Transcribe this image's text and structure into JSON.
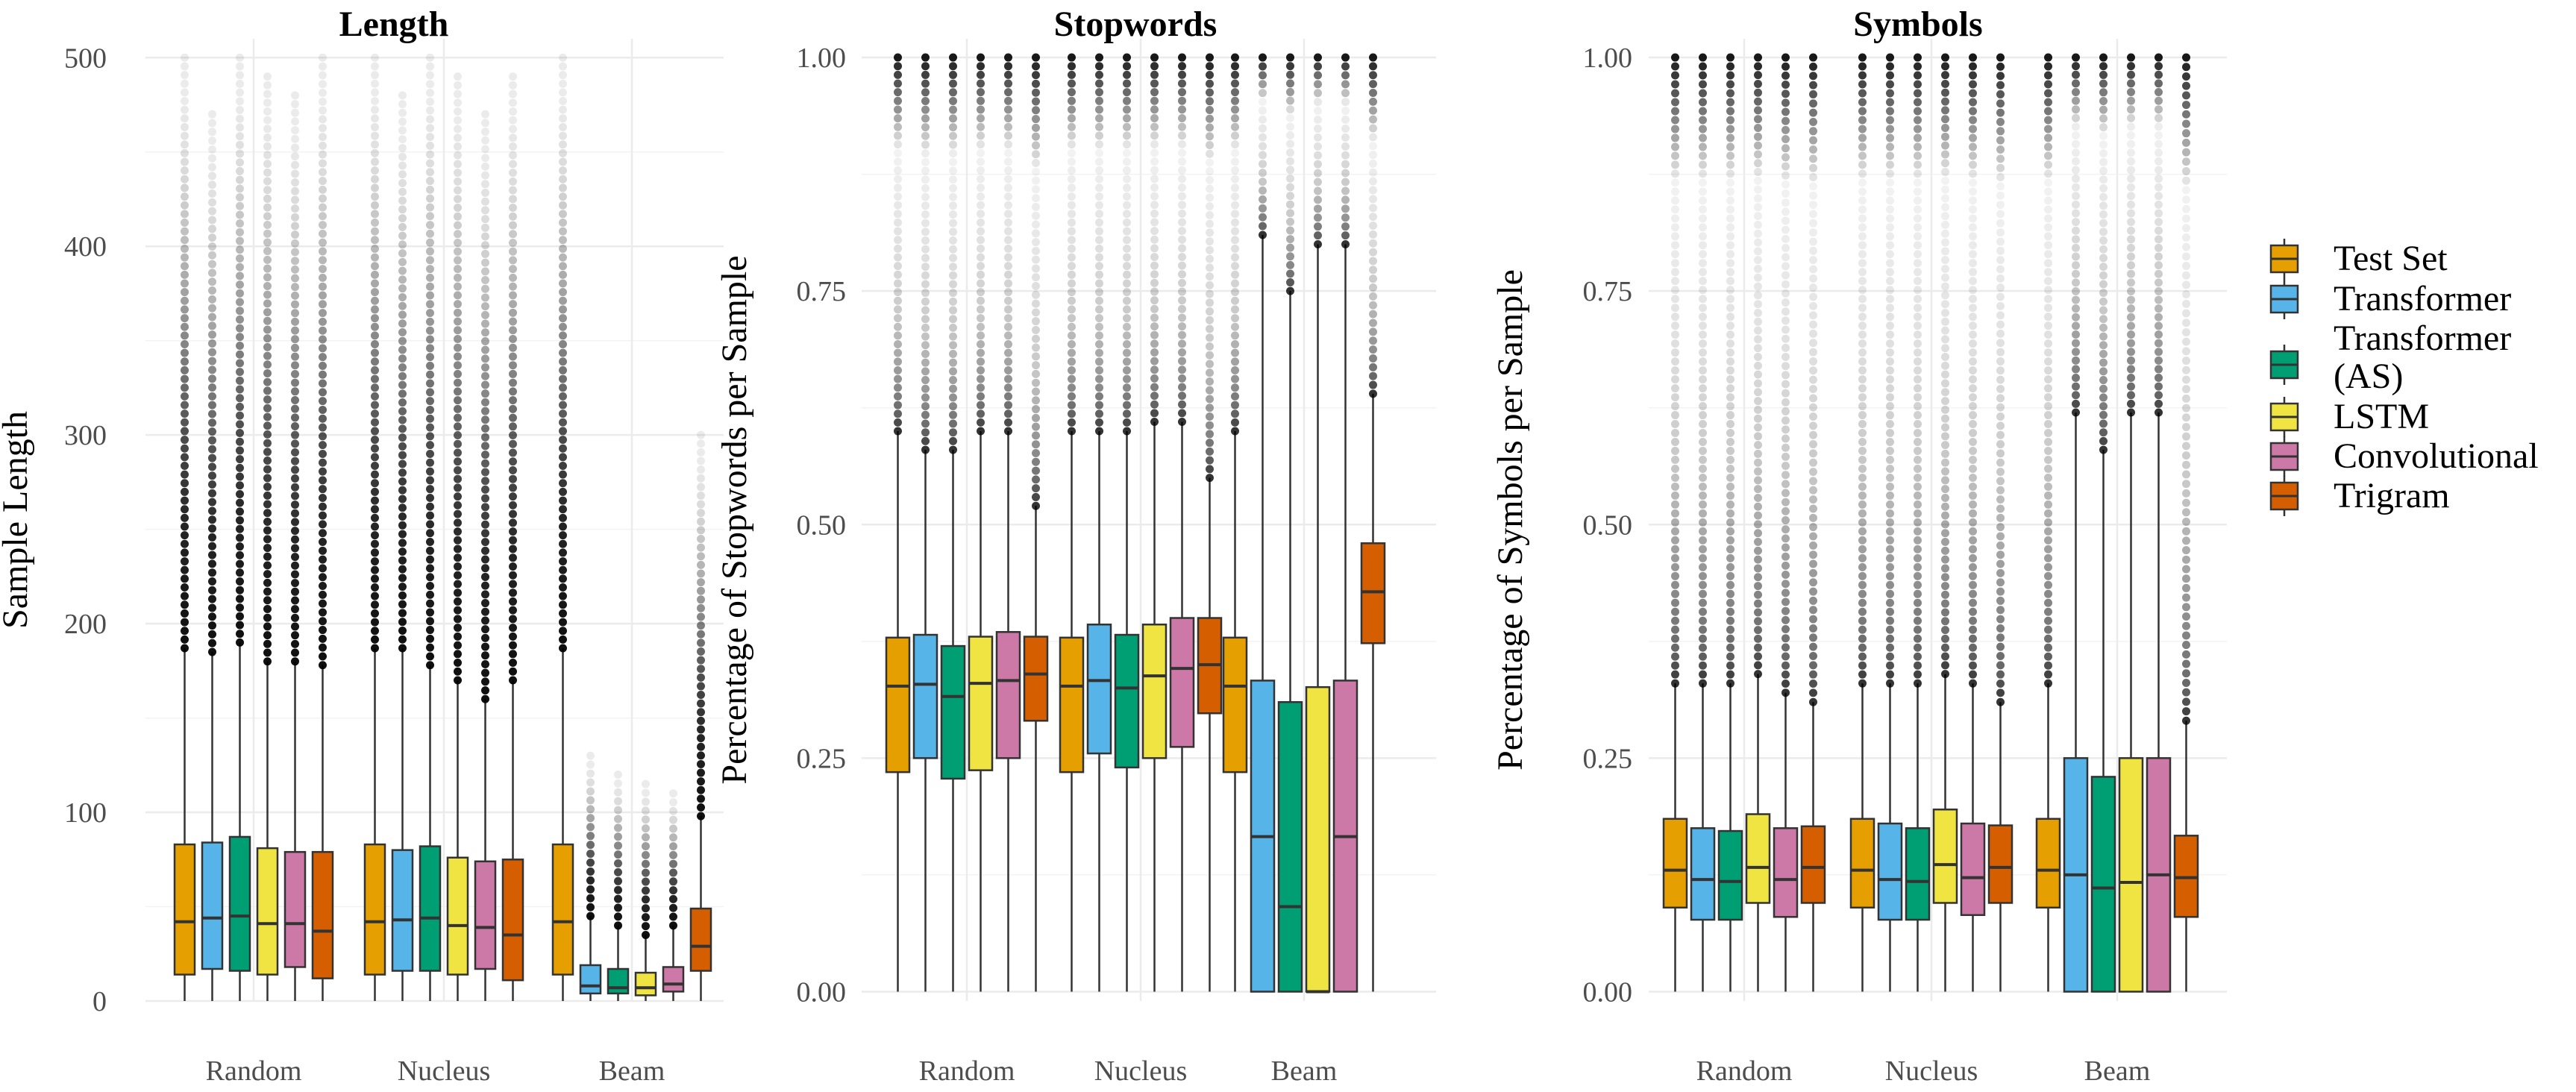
{
  "chart_data": [
    {
      "type": "boxplot",
      "title": "Length",
      "xlabel": "",
      "ylabel": "Sample Length",
      "ylim": [
        0,
        510
      ],
      "yticks": [
        0,
        100,
        200,
        300,
        400,
        500
      ],
      "ytick_labels": [
        "0",
        "100",
        "200",
        "300",
        "400",
        "500"
      ],
      "categories": [
        "Random",
        "Nucleus",
        "Beam"
      ],
      "series": [
        {
          "name": "Test Set",
          "boxes": [
            {
              "min": 0,
              "q1": 14,
              "median": 42,
              "q3": 83,
              "upper": 187,
              "outlier_max": 500
            },
            {
              "min": 0,
              "q1": 14,
              "median": 42,
              "q3": 83,
              "upper": 187,
              "outlier_max": 500
            },
            {
              "min": 0,
              "q1": 14,
              "median": 42,
              "q3": 83,
              "upper": 187,
              "outlier_max": 500
            }
          ]
        },
        {
          "name": "Transformer",
          "boxes": [
            {
              "min": 0,
              "q1": 17,
              "median": 44,
              "q3": 84,
              "upper": 185,
              "outlier_max": 470
            },
            {
              "min": 0,
              "q1": 16,
              "median": 43,
              "q3": 80,
              "upper": 187,
              "outlier_max": 480
            },
            {
              "min": 0,
              "q1": 4,
              "median": 8,
              "q3": 19,
              "upper": 45,
              "outlier_max": 130
            }
          ]
        },
        {
          "name": "Transformer (AS)",
          "boxes": [
            {
              "min": 0,
              "q1": 16,
              "median": 45,
              "q3": 87,
              "upper": 190,
              "outlier_max": 500
            },
            {
              "min": 0,
              "q1": 16,
              "median": 44,
              "q3": 82,
              "upper": 178,
              "outlier_max": 500
            },
            {
              "min": 0,
              "q1": 4,
              "median": 7,
              "q3": 17,
              "upper": 40,
              "outlier_max": 120
            }
          ]
        },
        {
          "name": "LSTM",
          "boxes": [
            {
              "min": 0,
              "q1": 14,
              "median": 41,
              "q3": 81,
              "upper": 180,
              "outlier_max": 490
            },
            {
              "min": 0,
              "q1": 14,
              "median": 40,
              "q3": 76,
              "upper": 170,
              "outlier_max": 490
            },
            {
              "min": 0,
              "q1": 3,
              "median": 7,
              "q3": 15,
              "upper": 35,
              "outlier_max": 115
            }
          ]
        },
        {
          "name": "Convolutional",
          "boxes": [
            {
              "min": 0,
              "q1": 18,
              "median": 41,
              "q3": 79,
              "upper": 180,
              "outlier_max": 480
            },
            {
              "min": 0,
              "q1": 17,
              "median": 39,
              "q3": 74,
              "upper": 160,
              "outlier_max": 470
            },
            {
              "min": 0,
              "q1": 5,
              "median": 9,
              "q3": 18,
              "upper": 40,
              "outlier_max": 110
            }
          ]
        },
        {
          "name": "Trigram",
          "boxes": [
            {
              "min": 0,
              "q1": 12,
              "median": 37,
              "q3": 79,
              "upper": 178,
              "outlier_max": 500
            },
            {
              "min": 0,
              "q1": 11,
              "median": 35,
              "q3": 75,
              "upper": 170,
              "outlier_max": 490
            },
            {
              "min": 0,
              "q1": 16,
              "median": 29,
              "q3": 49,
              "upper": 98,
              "outlier_max": 300
            }
          ]
        }
      ]
    },
    {
      "type": "boxplot",
      "title": "Stopwords",
      "xlabel": "",
      "ylabel": "Percentage of Stopwords per Sample",
      "ylim": [
        -0.01,
        1.02
      ],
      "yticks": [
        0,
        0.25,
        0.5,
        0.75,
        1.0
      ],
      "ytick_labels": [
        "0.00",
        "0.25",
        "0.50",
        "0.75",
        "1.00"
      ],
      "categories": [
        "Random",
        "Nucleus",
        "Beam"
      ],
      "series": [
        {
          "name": "Test Set",
          "boxes": [
            {
              "min": 0,
              "q1": 0.235,
              "median": 0.327,
              "q3": 0.379,
              "upper": 0.6,
              "outlier_max": 1.0
            },
            {
              "min": 0,
              "q1": 0.235,
              "median": 0.327,
              "q3": 0.379,
              "upper": 0.6,
              "outlier_max": 1.0
            },
            {
              "min": 0,
              "q1": 0.235,
              "median": 0.327,
              "q3": 0.379,
              "upper": 0.6,
              "outlier_max": 1.0
            }
          ]
        },
        {
          "name": "Transformer",
          "boxes": [
            {
              "min": 0,
              "q1": 0.25,
              "median": 0.329,
              "q3": 0.382,
              "upper": 0.58,
              "outlier_max": 1.0
            },
            {
              "min": 0,
              "q1": 0.255,
              "median": 0.333,
              "q3": 0.393,
              "upper": 0.6,
              "outlier_max": 1.0
            },
            {
              "min": 0,
              "q1": 0.0,
              "median": 0.166,
              "q3": 0.333,
              "upper": 0.81,
              "outlier_max": 1.0
            }
          ]
        },
        {
          "name": "Transformer (AS)",
          "boxes": [
            {
              "min": 0,
              "q1": 0.228,
              "median": 0.316,
              "q3": 0.37,
              "upper": 0.58,
              "outlier_max": 1.0
            },
            {
              "min": 0,
              "q1": 0.24,
              "median": 0.325,
              "q3": 0.382,
              "upper": 0.6,
              "outlier_max": 1.0
            },
            {
              "min": 0,
              "q1": 0.0,
              "median": 0.091,
              "q3": 0.31,
              "upper": 0.75,
              "outlier_max": 1.0
            }
          ]
        },
        {
          "name": "LSTM",
          "boxes": [
            {
              "min": 0,
              "q1": 0.237,
              "median": 0.33,
              "q3": 0.38,
              "upper": 0.6,
              "outlier_max": 1.0
            },
            {
              "min": 0,
              "q1": 0.25,
              "median": 0.338,
              "q3": 0.393,
              "upper": 0.61,
              "outlier_max": 1.0
            },
            {
              "min": 0,
              "q1": 0.0,
              "median": 0.0,
              "q3": 0.326,
              "upper": 0.8,
              "outlier_max": 1.0
            }
          ]
        },
        {
          "name": "Convolutional",
          "boxes": [
            {
              "min": 0,
              "q1": 0.25,
              "median": 0.333,
              "q3": 0.385,
              "upper": 0.6,
              "outlier_max": 1.0
            },
            {
              "min": 0,
              "q1": 0.262,
              "median": 0.346,
              "q3": 0.4,
              "upper": 0.61,
              "outlier_max": 1.0
            },
            {
              "min": 0,
              "q1": 0.0,
              "median": 0.166,
              "q3": 0.333,
              "upper": 0.8,
              "outlier_max": 1.0
            }
          ]
        },
        {
          "name": "Trigram",
          "boxes": [
            {
              "min": 0,
              "q1": 0.29,
              "median": 0.34,
              "q3": 0.38,
              "upper": 0.52,
              "outlier_max": 1.0
            },
            {
              "min": 0,
              "q1": 0.298,
              "median": 0.35,
              "q3": 0.4,
              "upper": 0.55,
              "outlier_max": 1.0
            },
            {
              "min": 0,
              "q1": 0.373,
              "median": 0.428,
              "q3": 0.48,
              "upper": 0.64,
              "outlier_max": 1.0
            }
          ]
        }
      ]
    },
    {
      "type": "boxplot",
      "title": "Symbols",
      "xlabel": "",
      "ylabel": "Percentage of Symbols per Sample",
      "ylim": [
        -0.01,
        1.02
      ],
      "yticks": [
        0,
        0.25,
        0.5,
        0.75,
        1.0
      ],
      "ytick_labels": [
        "0.00",
        "0.25",
        "0.50",
        "0.75",
        "1.00"
      ],
      "categories": [
        "Random",
        "Nucleus",
        "Beam"
      ],
      "series": [
        {
          "name": "Test Set",
          "boxes": [
            {
              "min": 0,
              "q1": 0.09,
              "median": 0.13,
              "q3": 0.185,
              "upper": 0.33,
              "outlier_max": 1.0
            },
            {
              "min": 0,
              "q1": 0.09,
              "median": 0.13,
              "q3": 0.185,
              "upper": 0.33,
              "outlier_max": 1.0
            },
            {
              "min": 0,
              "q1": 0.09,
              "median": 0.13,
              "q3": 0.185,
              "upper": 0.33,
              "outlier_max": 1.0
            }
          ]
        },
        {
          "name": "Transformer",
          "boxes": [
            {
              "min": 0,
              "q1": 0.077,
              "median": 0.12,
              "q3": 0.175,
              "upper": 0.33,
              "outlier_max": 1.0
            },
            {
              "min": 0,
              "q1": 0.077,
              "median": 0.12,
              "q3": 0.18,
              "upper": 0.33,
              "outlier_max": 1.0
            },
            {
              "min": 0,
              "q1": 0.0,
              "median": 0.125,
              "q3": 0.25,
              "upper": 0.62,
              "outlier_max": 1.0
            }
          ]
        },
        {
          "name": "Transformer (AS)",
          "boxes": [
            {
              "min": 0,
              "q1": 0.077,
              "median": 0.118,
              "q3": 0.172,
              "upper": 0.33,
              "outlier_max": 1.0
            },
            {
              "min": 0,
              "q1": 0.077,
              "median": 0.118,
              "q3": 0.175,
              "upper": 0.33,
              "outlier_max": 1.0
            },
            {
              "min": 0,
              "q1": 0.0,
              "median": 0.111,
              "q3": 0.23,
              "upper": 0.58,
              "outlier_max": 1.0
            }
          ]
        },
        {
          "name": "LSTM",
          "boxes": [
            {
              "min": 0,
              "q1": 0.095,
              "median": 0.133,
              "q3": 0.19,
              "upper": 0.34,
              "outlier_max": 1.0
            },
            {
              "min": 0,
              "q1": 0.095,
              "median": 0.136,
              "q3": 0.195,
              "upper": 0.34,
              "outlier_max": 1.0
            },
            {
              "min": 0,
              "q1": 0.0,
              "median": 0.117,
              "q3": 0.25,
              "upper": 0.62,
              "outlier_max": 1.0
            }
          ]
        },
        {
          "name": "Convolutional",
          "boxes": [
            {
              "min": 0,
              "q1": 0.08,
              "median": 0.12,
              "q3": 0.175,
              "upper": 0.32,
              "outlier_max": 1.0
            },
            {
              "min": 0,
              "q1": 0.082,
              "median": 0.122,
              "q3": 0.18,
              "upper": 0.33,
              "outlier_max": 1.0
            },
            {
              "min": 0,
              "q1": 0.0,
              "median": 0.125,
              "q3": 0.25,
              "upper": 0.62,
              "outlier_max": 1.0
            }
          ]
        },
        {
          "name": "Trigram",
          "boxes": [
            {
              "min": 0,
              "q1": 0.095,
              "median": 0.133,
              "q3": 0.177,
              "upper": 0.31,
              "outlier_max": 1.0
            },
            {
              "min": 0,
              "q1": 0.095,
              "median": 0.133,
              "q3": 0.178,
              "upper": 0.31,
              "outlier_max": 1.0
            },
            {
              "min": 0,
              "q1": 0.08,
              "median": 0.122,
              "q3": 0.167,
              "upper": 0.29,
              "outlier_max": 1.0
            }
          ]
        }
      ]
    }
  ],
  "legend": {
    "position": "right",
    "items": [
      {
        "label": "Test Set",
        "color": "#E69F00"
      },
      {
        "label": "Transformer",
        "color": "#56B4E9"
      },
      {
        "label": "Transformer\n(AS)",
        "color": "#009E73"
      },
      {
        "label": "LSTM",
        "color": "#F0E442"
      },
      {
        "label": "Convolutional",
        "color": "#CC79A7"
      },
      {
        "label": "Trigram",
        "color": "#D55E00"
      }
    ]
  }
}
